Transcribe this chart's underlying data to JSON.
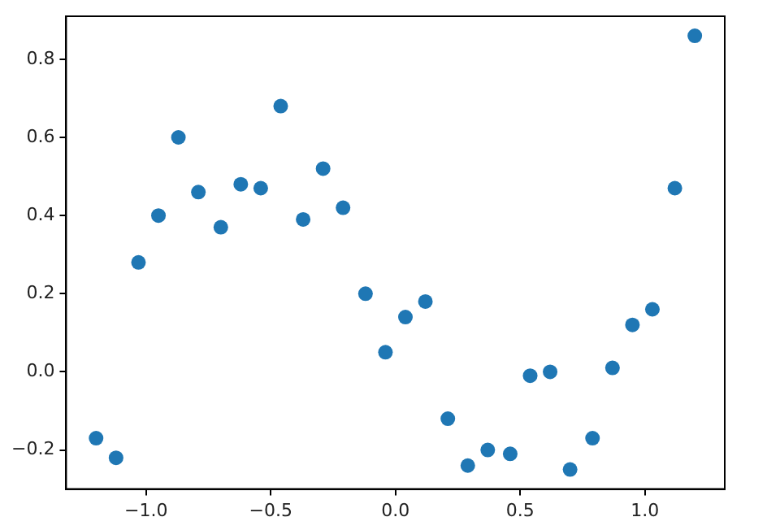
{
  "chart_data": {
    "type": "scatter",
    "x": [
      -1.2,
      -1.12,
      -1.03,
      -0.95,
      -0.87,
      -0.79,
      -0.7,
      -0.62,
      -0.54,
      -0.46,
      -0.37,
      -0.29,
      -0.21,
      -0.12,
      -0.04,
      0.04,
      0.12,
      0.21,
      0.29,
      0.37,
      0.46,
      0.54,
      0.62,
      0.7,
      0.79,
      0.87,
      0.95,
      1.03,
      1.12,
      1.2
    ],
    "series": [
      {
        "color": "#1f77b4",
        "values": [
          -0.17,
          -0.22,
          0.28,
          0.4,
          0.6,
          0.46,
          0.37,
          0.48,
          0.47,
          0.68,
          0.39,
          0.52,
          0.42,
          0.2,
          0.05,
          0.14,
          0.18,
          -0.12,
          -0.24,
          -0.2,
          -0.21,
          -0.01,
          0.0,
          -0.25,
          -0.17,
          0.01,
          0.12,
          0.16,
          0.47,
          0.86
        ]
      }
    ],
    "xlim": [
      -1.32,
      1.32
    ],
    "xticks": [
      {
        "value": -1,
        "label": "−1.0"
      },
      {
        "value": -0.5,
        "label": "−0.5"
      },
      {
        "value": 0,
        "label": "0.0"
      },
      {
        "value": 0.5,
        "label": "0.5"
      },
      {
        "value": 1,
        "label": "1.0"
      }
    ],
    "ylim": [
      -0.3,
      0.91
    ],
    "yticks": [
      {
        "value": -0.2,
        "label": "−0.2"
      },
      {
        "value": 0,
        "label": "0.0"
      },
      {
        "value": 0.2,
        "label": "0.2"
      },
      {
        "value": 0.4,
        "label": "0.4"
      },
      {
        "value": 0.6,
        "label": "0.6"
      },
      {
        "value": 0.8,
        "label": "0.8"
      }
    ],
    "grid": false,
    "legend": false,
    "marker": "circle"
  }
}
